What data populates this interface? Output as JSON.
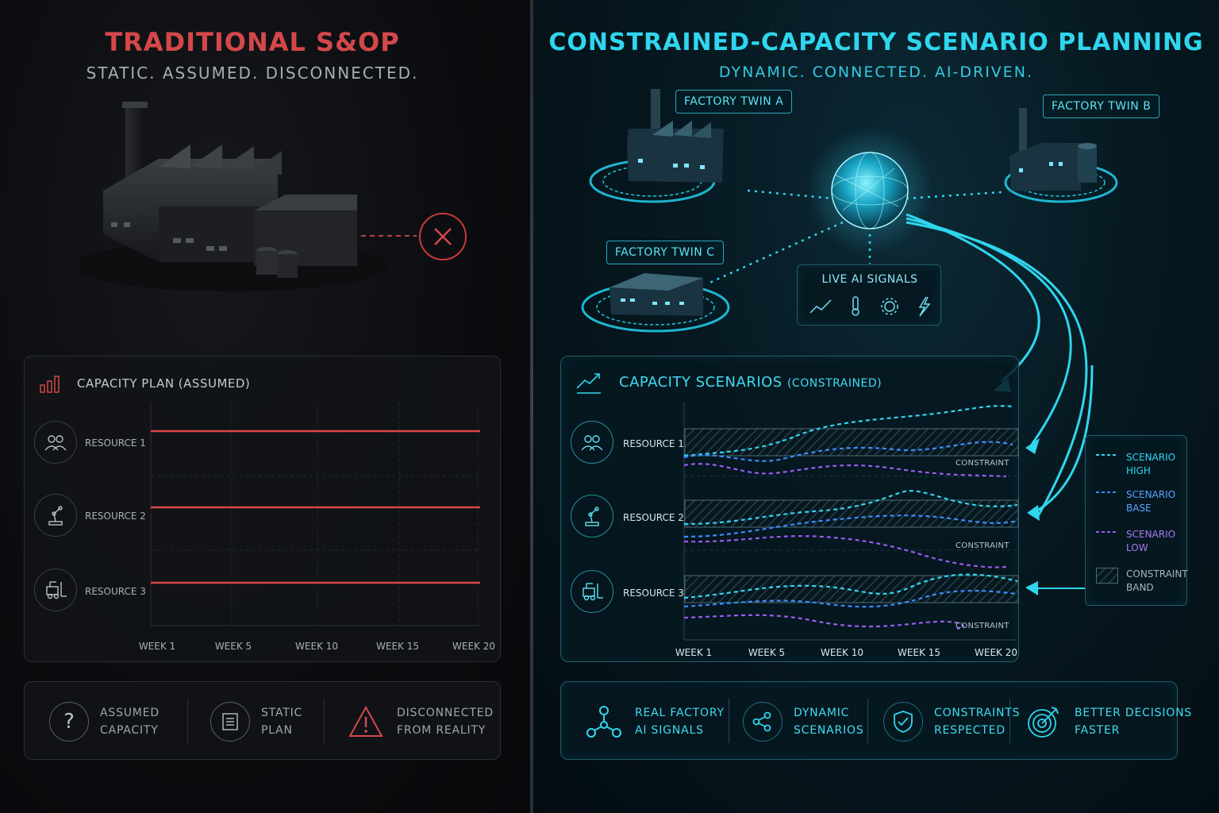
{
  "left": {
    "title": "TRADITIONAL S&OP",
    "subtitle": "STATIC. ASSUMED. DISCONNECTED.",
    "chart_title": "CAPACITY PLAN (ASSUMED)",
    "resources": [
      "RESOURCE 1",
      "RESOURCE 2",
      "RESOURCE 3"
    ],
    "weeks": [
      "WEEK 1",
      "WEEK 5",
      "WEEK 10",
      "WEEK 15",
      "WEEK 20"
    ],
    "features": [
      {
        "icon": "question-icon",
        "text": "ASSUMED\nCAPACITY"
      },
      {
        "icon": "document-icon",
        "text": "STATIC\nPLAN"
      },
      {
        "icon": "warning-icon",
        "text": "DISCONNECTED\nFROM REALITY"
      }
    ],
    "accent": "#d4484a"
  },
  "right": {
    "title": "CONSTRAINED-CAPACITY SCENARIO PLANNING",
    "subtitle": "DYNAMIC. CONNECTED. AI-DRIVEN.",
    "twins": [
      "FACTORY TWIN A",
      "FACTORY TWIN B",
      "FACTORY TWIN C"
    ],
    "signals_title": "LIVE AI SIGNALS",
    "chart_title": "CAPACITY SCENARIOS",
    "chart_title_small": "(CONSTRAINED)",
    "resources": [
      "RESOURCE 1",
      "RESOURCE 2",
      "RESOURCE 3"
    ],
    "constraint_label": "CONSTRAINT",
    "weeks": [
      "WEEK 1",
      "WEEK 5",
      "WEEK 10",
      "WEEK 15",
      "WEEK 20"
    ],
    "legend": [
      {
        "text": "SCENARIO\nHIGH",
        "color": "#2fd6ee"
      },
      {
        "text": "SCENARIO\nBASE",
        "color": "#3a8dff"
      },
      {
        "text": "SCENARIO\nLOW",
        "color": "#9a5cf0"
      },
      {
        "text": "CONSTRAINT\nBAND",
        "color": "#3b4c52"
      }
    ],
    "features": [
      {
        "icon": "network-icon",
        "text": "REAL FACTORY\nAI SIGNALS"
      },
      {
        "icon": "share-icon",
        "text": "DYNAMIC\nSCENARIOS"
      },
      {
        "icon": "shield-check-icon",
        "text": "CONSTRAINTS\nRESPECTED"
      },
      {
        "icon": "target-icon",
        "text": "BETTER DECISIONS\nFASTER"
      }
    ],
    "accent": "#2fd6ee"
  }
}
